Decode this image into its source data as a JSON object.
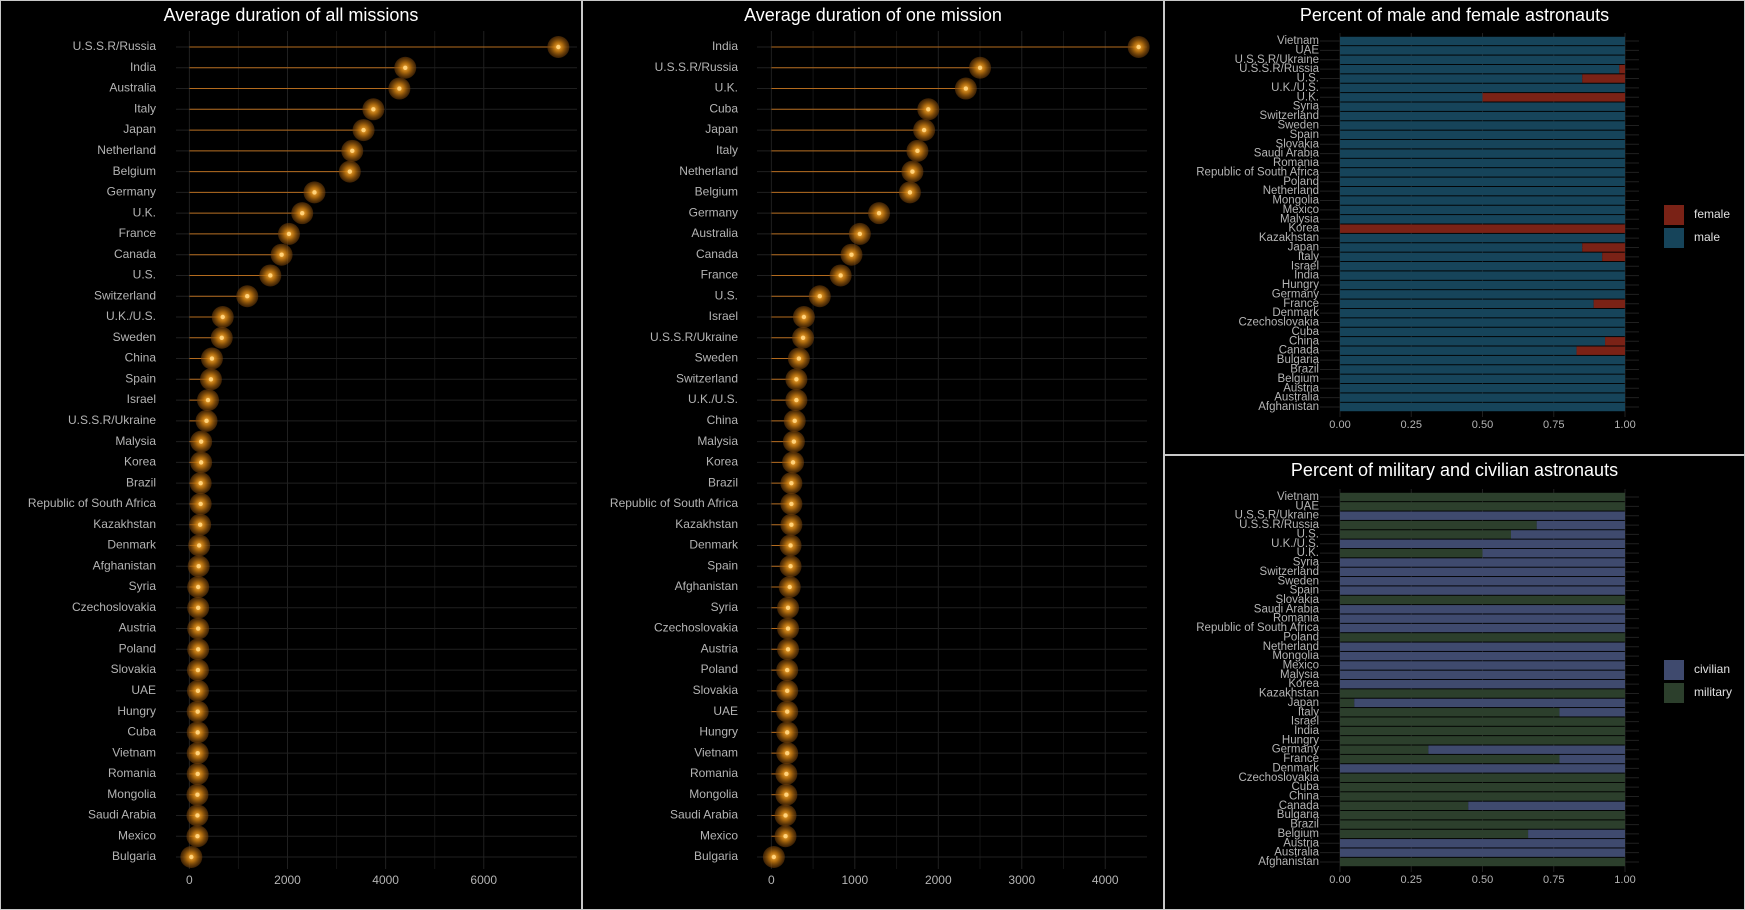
{
  "colors": {
    "background": "#000000",
    "grid": "#202020",
    "segment": "#b36b1e",
    "glow": "#c77a10",
    "point_core": "#ffd27a",
    "text": "#b4b4b4",
    "female": "#7a2216",
    "male": "#16445a",
    "civilian": "#3f4a6e",
    "military": "#2c3f2c"
  },
  "chart_data": [
    {
      "type": "lollipop",
      "title": "Average duration of all missions",
      "xlabel": "",
      "ylabel": "",
      "xlim": [
        -150,
        7900
      ],
      "xticks": [
        0,
        2000,
        4000,
        6000
      ],
      "xtick_labels": [
        "0",
        "2000",
        "4000",
        "6000"
      ],
      "categories": [
        "U.S.S.R/Russia",
        "India",
        "Australia",
        "Italy",
        "Japan",
        "Netherland",
        "Belgium",
        "Germany",
        "U.K.",
        "France",
        "Canada",
        "U.S.",
        "Switzerland",
        "U.K./U.S.",
        "Sweden",
        "China",
        "Spain",
        "Israel",
        "U.S.S.R/Ukraine",
        "Malysia",
        "Korea",
        "Brazil",
        "Republic of South Africa",
        "Kazakhstan",
        "Denmark",
        "Afghanistan",
        "Syria",
        "Czechoslovakia",
        "Austria",
        "Poland",
        "Slovakia",
        "UAE",
        "Hungry",
        "Cuba",
        "Vietnam",
        "Romania",
        "Mongolia",
        "Saudi Arabia",
        "Mexico",
        "Bulgaria"
      ],
      "values": [
        7520,
        4400,
        4280,
        3750,
        3550,
        3320,
        3270,
        2550,
        2300,
        2030,
        1880,
        1650,
        1180,
        680,
        660,
        460,
        440,
        380,
        350,
        240,
        240,
        230,
        230,
        220,
        200,
        190,
        180,
        180,
        180,
        180,
        175,
        175,
        170,
        170,
        170,
        170,
        165,
        165,
        165,
        40
      ],
      "grid": true
    },
    {
      "type": "lollipop",
      "title": "Average duration of one mission",
      "xlabel": "",
      "ylabel": "",
      "xlim": [
        -100,
        4500
      ],
      "xticks": [
        0,
        1000,
        2000,
        3000,
        4000
      ],
      "xtick_labels": [
        "0",
        "1000",
        "2000",
        "3000",
        "4000"
      ],
      "categories": [
        "India",
        "U.S.S.R/Russia",
        "U.K.",
        "Cuba",
        "Japan",
        "Italy",
        "Netherland",
        "Belgium",
        "Germany",
        "Australia",
        "Canada",
        "France",
        "U.S.",
        "Israel",
        "U.S.S.R/Ukraine",
        "Sweden",
        "Switzerland",
        "U.K./U.S.",
        "China",
        "Malysia",
        "Korea",
        "Brazil",
        "Republic of South Africa",
        "Kazakhstan",
        "Denmark",
        "Spain",
        "Afghanistan",
        "Syria",
        "Czechoslovakia",
        "Austria",
        "Poland",
        "Slovakia",
        "UAE",
        "Hungry",
        "Vietnam",
        "Romania",
        "Mongolia",
        "Saudi Arabia",
        "Mexico",
        "Bulgaria"
      ],
      "values": [
        4400,
        2500,
        2330,
        1880,
        1830,
        1750,
        1690,
        1660,
        1290,
        1060,
        960,
        830,
        580,
        390,
        380,
        330,
        300,
        300,
        280,
        270,
        260,
        240,
        240,
        240,
        230,
        230,
        220,
        200,
        200,
        200,
        190,
        190,
        190,
        190,
        190,
        180,
        180,
        170,
        170,
        30
      ],
      "grid": true
    },
    {
      "type": "bar",
      "orientation": "horizontal",
      "stacked": "fill",
      "title": "Percent of male and female astronauts",
      "xlabel": "",
      "ylabel": "",
      "xlim": [
        0,
        1
      ],
      "xticks": [
        0,
        0.25,
        0.5,
        0.75,
        1
      ],
      "xtick_labels": [
        "0.00",
        "0.25",
        "0.50",
        "0.75",
        "1.00"
      ],
      "categories": [
        "Vietnam",
        "UAE",
        "U.S.S.R/Ukraine",
        "U.S.S.R/Russia",
        "U.S.",
        "U.K./U.S.",
        "U.K.",
        "Syria",
        "Switzerland",
        "Sweden",
        "Spain",
        "Slovakia",
        "Saudi Arabia",
        "Romania",
        "Republic of South Africa",
        "Poland",
        "Netherland",
        "Mongolia",
        "Mexico",
        "Malysia",
        "Korea",
        "Kazakhstan",
        "Japan",
        "Italy",
        "Israel",
        "India",
        "Hungry",
        "Germany",
        "France",
        "Denmark",
        "Czechoslovakia",
        "Cuba",
        "China",
        "Canada",
        "Bulgaria",
        "Brazil",
        "Belgium",
        "Austria",
        "Australia",
        "Afghanistan"
      ],
      "series": [
        {
          "name": "female",
          "values": [
            0,
            0,
            0,
            0.02,
            0.15,
            0,
            0.5,
            0,
            0,
            0,
            0,
            0,
            0,
            0,
            0,
            0,
            0,
            0,
            0,
            0,
            1,
            0,
            0.15,
            0.08,
            0,
            0,
            0,
            0,
            0.11,
            0,
            0,
            0,
            0.07,
            0.17,
            0,
            0,
            0,
            0,
            0,
            0
          ]
        },
        {
          "name": "male",
          "values": [
            1,
            1,
            1,
            0.98,
            0.85,
            1,
            0.5,
            1,
            1,
            1,
            1,
            1,
            1,
            1,
            1,
            1,
            1,
            1,
            1,
            1,
            0,
            1,
            0.85,
            0.92,
            1,
            1,
            1,
            1,
            0.89,
            1,
            1,
            1,
            0.93,
            0.83,
            1,
            1,
            1,
            1,
            1,
            1
          ]
        }
      ],
      "legend": {
        "position": "right",
        "entries": [
          "female",
          "male"
        ]
      },
      "grid": true
    },
    {
      "type": "bar",
      "orientation": "horizontal",
      "stacked": "fill",
      "title": "Percent of military and civilian astronauts",
      "xlabel": "",
      "ylabel": "",
      "xlim": [
        0,
        1
      ],
      "xticks": [
        0,
        0.25,
        0.5,
        0.75,
        1
      ],
      "xtick_labels": [
        "0.00",
        "0.25",
        "0.50",
        "0.75",
        "1.00"
      ],
      "categories": [
        "Vietnam",
        "UAE",
        "U.S.S.R/Ukraine",
        "U.S.S.R/Russia",
        "U.S.",
        "U.K./U.S.",
        "U.K.",
        "Syria",
        "Switzerland",
        "Sweden",
        "Spain",
        "Slovakia",
        "Saudi Arabia",
        "Romania",
        "Republic of South Africa",
        "Poland",
        "Netherland",
        "Mongolia",
        "Mexico",
        "Malysia",
        "Korea",
        "Kazakhstan",
        "Japan",
        "Italy",
        "Israel",
        "India",
        "Hungry",
        "Germany",
        "France",
        "Denmark",
        "Czechoslovakia",
        "Cuba",
        "China",
        "Canada",
        "Bulgaria",
        "Brazil",
        "Belgium",
        "Austria",
        "Australia",
        "Afghanistan"
      ],
      "series": [
        {
          "name": "civilian",
          "values": [
            0,
            0,
            1,
            0.31,
            0.4,
            1,
            0.5,
            1,
            1,
            1,
            1,
            0,
            1,
            1,
            1,
            0,
            1,
            1,
            1,
            1,
            1,
            0,
            0.95,
            0.23,
            0,
            0,
            0,
            0.69,
            0.23,
            1,
            0,
            0,
            0,
            0.55,
            0,
            0,
            0.34,
            1,
            1,
            0
          ]
        },
        {
          "name": "military",
          "values": [
            1,
            1,
            0,
            0.69,
            0.6,
            0,
            0.5,
            0,
            0,
            0,
            0,
            1,
            0,
            0,
            0,
            1,
            0,
            0,
            0,
            0,
            0,
            1,
            0.05,
            0.77,
            1,
            1,
            1,
            0.31,
            0.77,
            0,
            1,
            1,
            1,
            0.45,
            1,
            1,
            0.66,
            0,
            0,
            1
          ]
        }
      ],
      "legend": {
        "position": "right",
        "entries": [
          "civilian",
          "military"
        ]
      },
      "grid": true
    }
  ]
}
